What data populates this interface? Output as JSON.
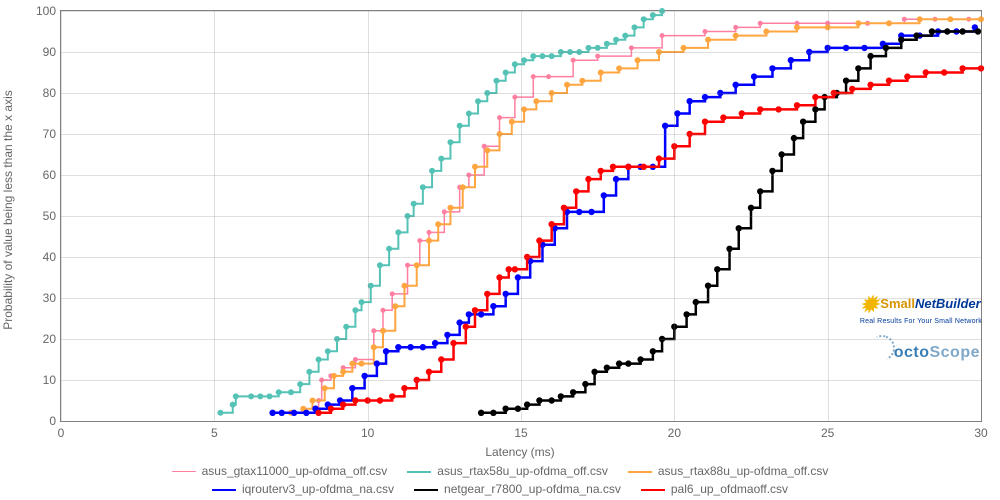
{
  "chart": {
    "type": "line",
    "background_color": "#ffffff",
    "grid_color": "rgba(128,128,128,0.25)",
    "axis_color": "#808080",
    "tick_font_size": 12,
    "label_font_size": 12,
    "tick_color": "#666666",
    "x_label": "Latency (ms)",
    "y_label": "Probability of value being less than the x axis",
    "xlim": [
      0,
      30
    ],
    "ylim": [
      0,
      100
    ],
    "xtick_step": 5,
    "ytick_step": 10,
    "xticks": [
      0,
      5,
      10,
      15,
      20,
      25,
      30
    ],
    "yticks": [
      0,
      10,
      20,
      30,
      40,
      50,
      60,
      70,
      80,
      90,
      100
    ],
    "marker_radius": 3.2,
    "line_width": 2,
    "series": [
      {
        "name": "asus_gtax11000_up-ofdma_off.csv",
        "color": "#ff7fa0",
        "line_width": 1.5,
        "marker_radius": 2.5,
        "data": [
          [
            8.0,
            2
          ],
          [
            8.4,
            5
          ],
          [
            8.5,
            10
          ],
          [
            8.8,
            11
          ],
          [
            9.2,
            13
          ],
          [
            9.6,
            15
          ],
          [
            10.2,
            22
          ],
          [
            10.5,
            27
          ],
          [
            10.8,
            31
          ],
          [
            11.3,
            38
          ],
          [
            11.7,
            44
          ],
          [
            12.0,
            46
          ],
          [
            12.5,
            51
          ],
          [
            13.0,
            57
          ],
          [
            13.3,
            60
          ],
          [
            13.8,
            67
          ],
          [
            14.3,
            74
          ],
          [
            14.8,
            79
          ],
          [
            15.4,
            84
          ],
          [
            15.9,
            84
          ],
          [
            16.7,
            88
          ],
          [
            17.5,
            89
          ],
          [
            18.6,
            91
          ],
          [
            19.6,
            94
          ],
          [
            21.0,
            95
          ],
          [
            22.0,
            96
          ],
          [
            22.8,
            97
          ],
          [
            24.0,
            97
          ],
          [
            25.0,
            97
          ],
          [
            26.3,
            97
          ],
          [
            27.5,
            98
          ],
          [
            28.5,
            98
          ],
          [
            29.6,
            98
          ]
        ]
      },
      {
        "name": "asus_rtax58u_up-ofdma_off.csv",
        "color": "#55c2b6",
        "line_width": 2,
        "marker_radius": 3.0,
        "data": [
          [
            5.2,
            2
          ],
          [
            5.6,
            4
          ],
          [
            5.7,
            6
          ],
          [
            6.2,
            6
          ],
          [
            6.5,
            6
          ],
          [
            6.8,
            6
          ],
          [
            7.1,
            7
          ],
          [
            7.5,
            7
          ],
          [
            7.8,
            9
          ],
          [
            8.1,
            12
          ],
          [
            8.4,
            15
          ],
          [
            8.7,
            17
          ],
          [
            9.0,
            20
          ],
          [
            9.3,
            23
          ],
          [
            9.6,
            27
          ],
          [
            9.8,
            29
          ],
          [
            10.1,
            33
          ],
          [
            10.4,
            38
          ],
          [
            10.7,
            42
          ],
          [
            11.0,
            46
          ],
          [
            11.3,
            50
          ],
          [
            11.5,
            53
          ],
          [
            11.8,
            57
          ],
          [
            12.1,
            61
          ],
          [
            12.4,
            64
          ],
          [
            12.7,
            68
          ],
          [
            13.0,
            72
          ],
          [
            13.3,
            75
          ],
          [
            13.6,
            78
          ],
          [
            13.9,
            80
          ],
          [
            14.2,
            83
          ],
          [
            14.5,
            85
          ],
          [
            14.8,
            87
          ],
          [
            15.1,
            88
          ],
          [
            15.4,
            89
          ],
          [
            15.7,
            89
          ],
          [
            16.0,
            89
          ],
          [
            16.3,
            90
          ],
          [
            16.6,
            90
          ],
          [
            16.9,
            90
          ],
          [
            17.2,
            91
          ],
          [
            17.5,
            91
          ],
          [
            17.8,
            92
          ],
          [
            18.1,
            93
          ],
          [
            18.4,
            94
          ],
          [
            18.7,
            96
          ],
          [
            19.0,
            98
          ],
          [
            19.3,
            99
          ],
          [
            19.6,
            100
          ]
        ]
      },
      {
        "name": "asus_rtax88u_up-ofdma_off.csv",
        "color": "#ffa640",
        "line_width": 2,
        "marker_radius": 3.0,
        "data": [
          [
            7.5,
            2
          ],
          [
            7.9,
            3
          ],
          [
            8.2,
            5
          ],
          [
            8.6,
            8
          ],
          [
            8.9,
            11
          ],
          [
            9.2,
            12
          ],
          [
            9.5,
            14
          ],
          [
            9.8,
            14
          ],
          [
            10.2,
            18
          ],
          [
            10.5,
            22
          ],
          [
            10.9,
            28
          ],
          [
            11.2,
            33
          ],
          [
            11.6,
            38
          ],
          [
            12.0,
            44
          ],
          [
            12.3,
            48
          ],
          [
            12.7,
            52
          ],
          [
            13.1,
            57
          ],
          [
            13.5,
            62
          ],
          [
            13.9,
            66
          ],
          [
            14.3,
            70
          ],
          [
            14.7,
            73
          ],
          [
            15.1,
            76
          ],
          [
            15.5,
            78
          ],
          [
            16.0,
            80
          ],
          [
            16.5,
            82
          ],
          [
            17.0,
            83
          ],
          [
            17.6,
            85
          ],
          [
            18.2,
            86
          ],
          [
            18.8,
            88
          ],
          [
            19.5,
            90
          ],
          [
            20.3,
            91
          ],
          [
            21.1,
            93
          ],
          [
            22.0,
            94
          ],
          [
            23.0,
            95
          ],
          [
            24.0,
            96
          ],
          [
            25.0,
            96
          ],
          [
            26.0,
            97
          ],
          [
            27.0,
            97
          ],
          [
            28.0,
            98
          ],
          [
            29.0,
            98
          ],
          [
            30.0,
            98
          ]
        ]
      },
      {
        "name": "iqrouterv3_up-ofdma_na.csv",
        "color": "#0000ff",
        "line_width": 2.5,
        "marker_radius": 3.2,
        "data": [
          [
            6.9,
            2
          ],
          [
            7.2,
            2
          ],
          [
            7.6,
            2
          ],
          [
            8.0,
            2
          ],
          [
            8.3,
            3
          ],
          [
            8.7,
            4
          ],
          [
            9.1,
            5
          ],
          [
            9.5,
            8
          ],
          [
            9.9,
            11
          ],
          [
            10.3,
            14
          ],
          [
            10.6,
            17
          ],
          [
            11.0,
            18
          ],
          [
            11.4,
            18
          ],
          [
            11.8,
            18
          ],
          [
            12.2,
            19
          ],
          [
            12.6,
            21
          ],
          [
            13.0,
            24
          ],
          [
            13.3,
            26
          ],
          [
            13.7,
            26
          ],
          [
            14.1,
            28
          ],
          [
            14.5,
            31
          ],
          [
            14.9,
            35
          ],
          [
            15.3,
            39
          ],
          [
            15.7,
            43
          ],
          [
            16.1,
            47
          ],
          [
            16.5,
            51
          ],
          [
            16.9,
            51
          ],
          [
            17.3,
            51
          ],
          [
            17.7,
            55
          ],
          [
            18.1,
            59
          ],
          [
            18.5,
            62
          ],
          [
            18.9,
            62
          ],
          [
            19.3,
            62
          ],
          [
            19.7,
            72
          ],
          [
            20.1,
            75
          ],
          [
            20.5,
            78
          ],
          [
            21.0,
            79
          ],
          [
            21.5,
            80
          ],
          [
            22.0,
            82
          ],
          [
            22.6,
            84
          ],
          [
            23.2,
            86
          ],
          [
            23.8,
            88
          ],
          [
            24.4,
            90
          ],
          [
            25.0,
            91
          ],
          [
            25.6,
            91
          ],
          [
            26.2,
            91
          ],
          [
            26.8,
            92
          ],
          [
            27.4,
            94
          ],
          [
            28.0,
            94
          ],
          [
            28.6,
            95
          ],
          [
            29.2,
            95
          ],
          [
            29.8,
            96
          ]
        ]
      },
      {
        "name": "netgear_r7800_up-ofdma_na.csv",
        "color": "#000000",
        "line_width": 2.5,
        "marker_radius": 3.2,
        "data": [
          [
            13.7,
            2
          ],
          [
            14.1,
            2
          ],
          [
            14.5,
            3
          ],
          [
            14.9,
            3
          ],
          [
            15.2,
            4
          ],
          [
            15.6,
            5
          ],
          [
            16.0,
            5
          ],
          [
            16.3,
            6
          ],
          [
            16.7,
            7
          ],
          [
            17.1,
            9
          ],
          [
            17.4,
            12
          ],
          [
            17.8,
            13
          ],
          [
            18.2,
            14
          ],
          [
            18.5,
            14
          ],
          [
            18.9,
            15
          ],
          [
            19.3,
            17
          ],
          [
            19.6,
            20
          ],
          [
            20.0,
            23
          ],
          [
            20.4,
            26
          ],
          [
            20.7,
            29
          ],
          [
            21.1,
            33
          ],
          [
            21.4,
            37
          ],
          [
            21.8,
            42
          ],
          [
            22.1,
            47
          ],
          [
            22.5,
            52
          ],
          [
            22.8,
            56
          ],
          [
            23.2,
            61
          ],
          [
            23.5,
            65
          ],
          [
            23.9,
            69
          ],
          [
            24.2,
            73
          ],
          [
            24.6,
            76
          ],
          [
            24.9,
            79
          ],
          [
            25.3,
            80
          ],
          [
            25.6,
            83
          ],
          [
            26.0,
            86
          ],
          [
            26.4,
            89
          ],
          [
            26.9,
            91
          ],
          [
            27.4,
            93
          ],
          [
            27.9,
            94
          ],
          [
            28.4,
            95
          ],
          [
            28.9,
            95
          ],
          [
            29.4,
            95
          ],
          [
            29.9,
            95
          ]
        ]
      },
      {
        "name": "pal6_up_ofdmaoff.csv",
        "color": "#ff0000",
        "line_width": 2.5,
        "marker_radius": 3.2,
        "data": [
          [
            8.4,
            2
          ],
          [
            8.8,
            3
          ],
          [
            9.2,
            4
          ],
          [
            9.6,
            5
          ],
          [
            10.0,
            5
          ],
          [
            10.4,
            5
          ],
          [
            10.8,
            6
          ],
          [
            11.2,
            8
          ],
          [
            11.6,
            10
          ],
          [
            12.0,
            12
          ],
          [
            12.4,
            15
          ],
          [
            12.8,
            19
          ],
          [
            13.2,
            23
          ],
          [
            13.5,
            27
          ],
          [
            13.9,
            31
          ],
          [
            14.3,
            35
          ],
          [
            14.6,
            37
          ],
          [
            14.8,
            37
          ],
          [
            15.2,
            40
          ],
          [
            15.6,
            44
          ],
          [
            16.0,
            48
          ],
          [
            16.4,
            52
          ],
          [
            16.8,
            56
          ],
          [
            17.2,
            59
          ],
          [
            17.6,
            61
          ],
          [
            18.0,
            62
          ],
          [
            18.5,
            62
          ],
          [
            19.0,
            62
          ],
          [
            19.5,
            64
          ],
          [
            20.0,
            67
          ],
          [
            20.5,
            70
          ],
          [
            21.0,
            73
          ],
          [
            21.6,
            74
          ],
          [
            22.2,
            75
          ],
          [
            22.8,
            76
          ],
          [
            23.4,
            76
          ],
          [
            24.0,
            77
          ],
          [
            24.6,
            79
          ],
          [
            25.2,
            80
          ],
          [
            25.8,
            81
          ],
          [
            26.4,
            82
          ],
          [
            27.0,
            83
          ],
          [
            27.6,
            84
          ],
          [
            28.2,
            85
          ],
          [
            28.8,
            85
          ],
          [
            29.4,
            86
          ],
          [
            30.0,
            86
          ]
        ]
      }
    ]
  },
  "watermarks": {
    "logo1_small": "Small",
    "logo1_main": "NetBuilder",
    "logo1_tag": "Real Results For Your Small Network",
    "logo2_text_a": "octo",
    "logo2_text_b": "Scope"
  }
}
